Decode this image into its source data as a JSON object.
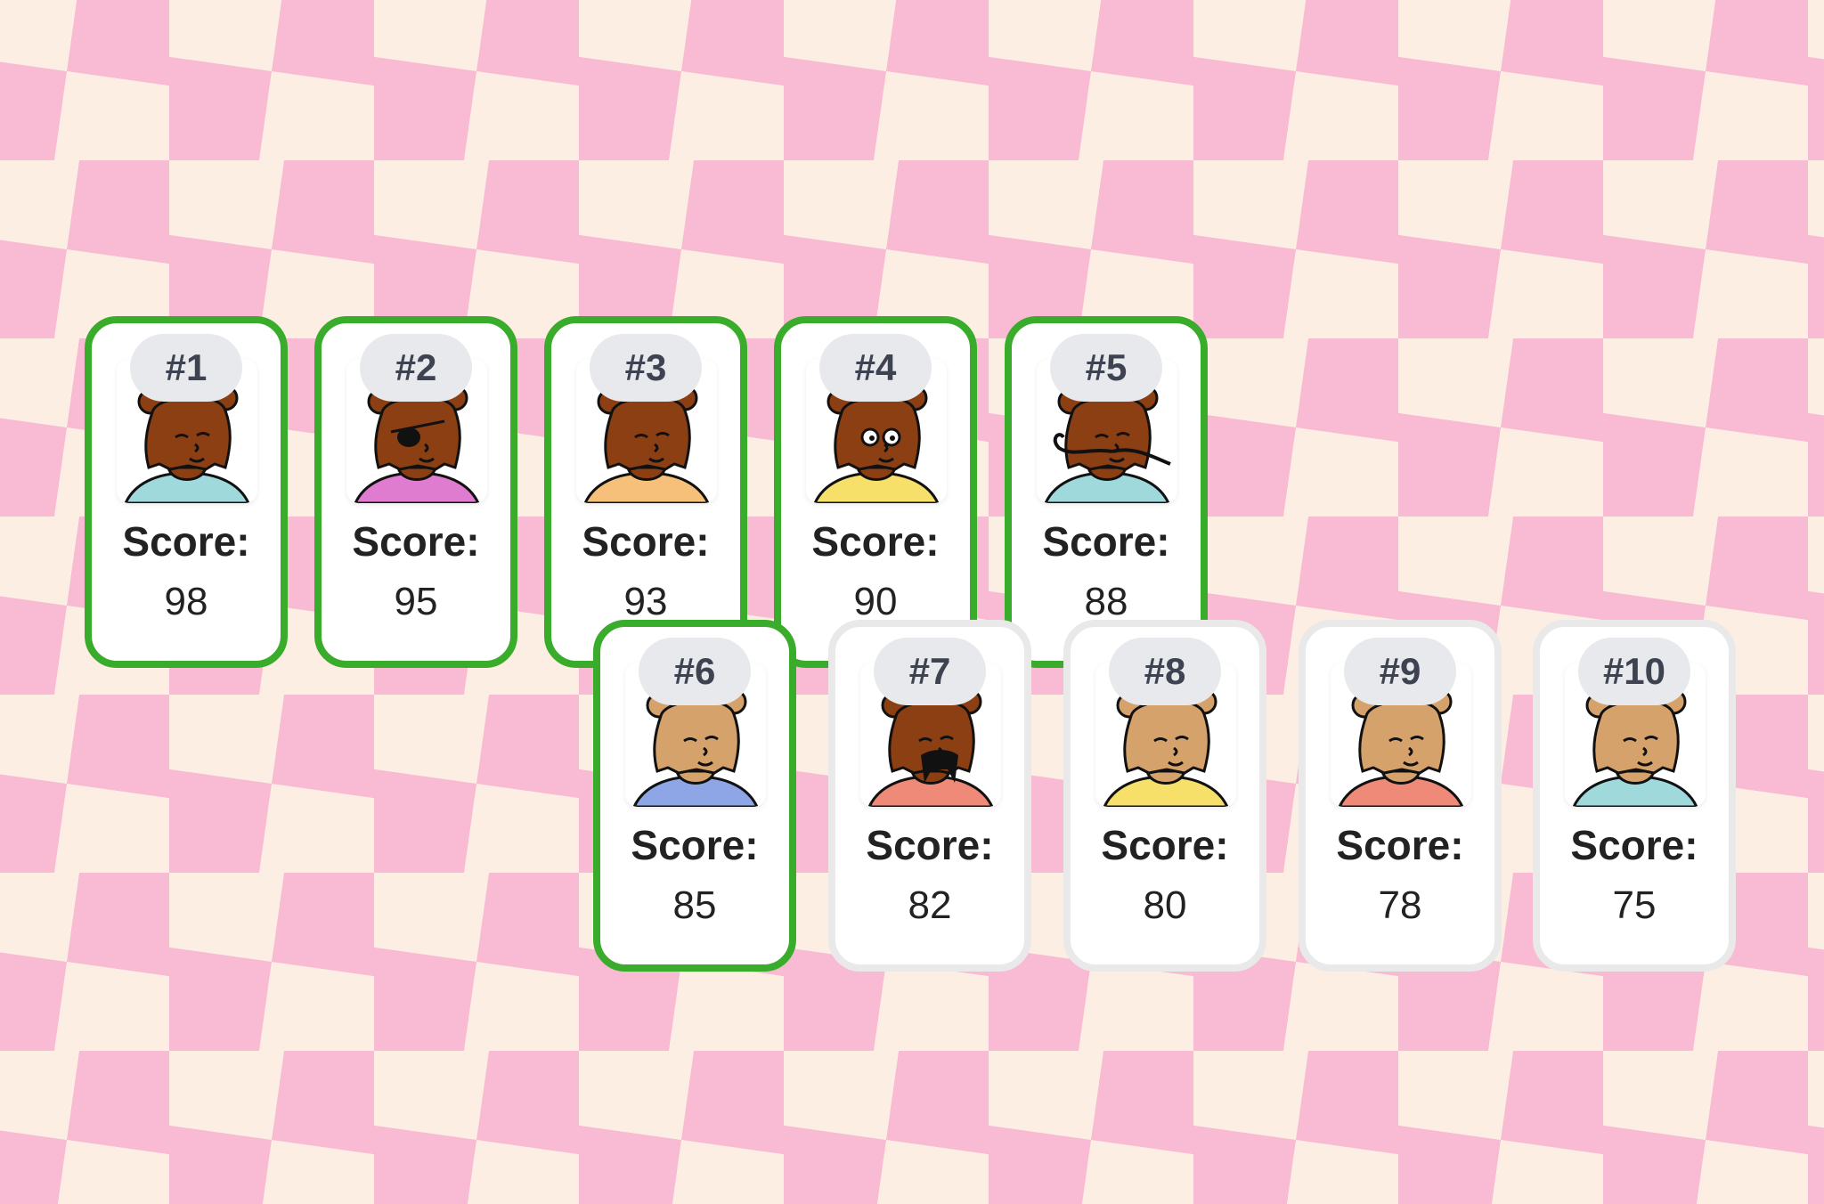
{
  "score_label": "Score:",
  "colors": {
    "selected_border": "#3aac2b",
    "unselected_border": "#e9e9ea",
    "bg_pink": "#f9bad4",
    "bg_cream": "#fdeee3"
  },
  "cards": [
    {
      "rank": "#1",
      "score": "98",
      "selected": true,
      "skin": "#8b3f12",
      "shirt": "#9fd9dc"
    },
    {
      "rank": "#2",
      "score": "95",
      "selected": true,
      "skin": "#8b3f12",
      "shirt": "#e07ccf",
      "accessory": "eyepatch"
    },
    {
      "rank": "#3",
      "score": "93",
      "selected": true,
      "skin": "#8b3f12",
      "shirt": "#f7c07a"
    },
    {
      "rank": "#4",
      "score": "90",
      "selected": true,
      "skin": "#8b3f12",
      "shirt": "#f6e06a",
      "accessory": "googly-eyes"
    },
    {
      "rank": "#5",
      "score": "88",
      "selected": true,
      "skin": "#8b3f12",
      "shirt": "#9fd9dc",
      "accessory": "long-mustache"
    },
    {
      "rank": "#6",
      "score": "85",
      "selected": true,
      "skin": "#d6a26c",
      "shirt": "#8ea6e6"
    },
    {
      "rank": "#7",
      "score": "82",
      "selected": false,
      "skin": "#8b3f12",
      "shirt": "#ef8a78",
      "accessory": "mustache"
    },
    {
      "rank": "#8",
      "score": "80",
      "selected": false,
      "skin": "#d6a26c",
      "shirt": "#f6e06a"
    },
    {
      "rank": "#9",
      "score": "78",
      "selected": false,
      "skin": "#d6a26c",
      "shirt": "#ef8a78"
    },
    {
      "rank": "#10",
      "score": "75",
      "selected": false,
      "skin": "#d6a26c",
      "shirt": "#9fd9dc"
    }
  ]
}
